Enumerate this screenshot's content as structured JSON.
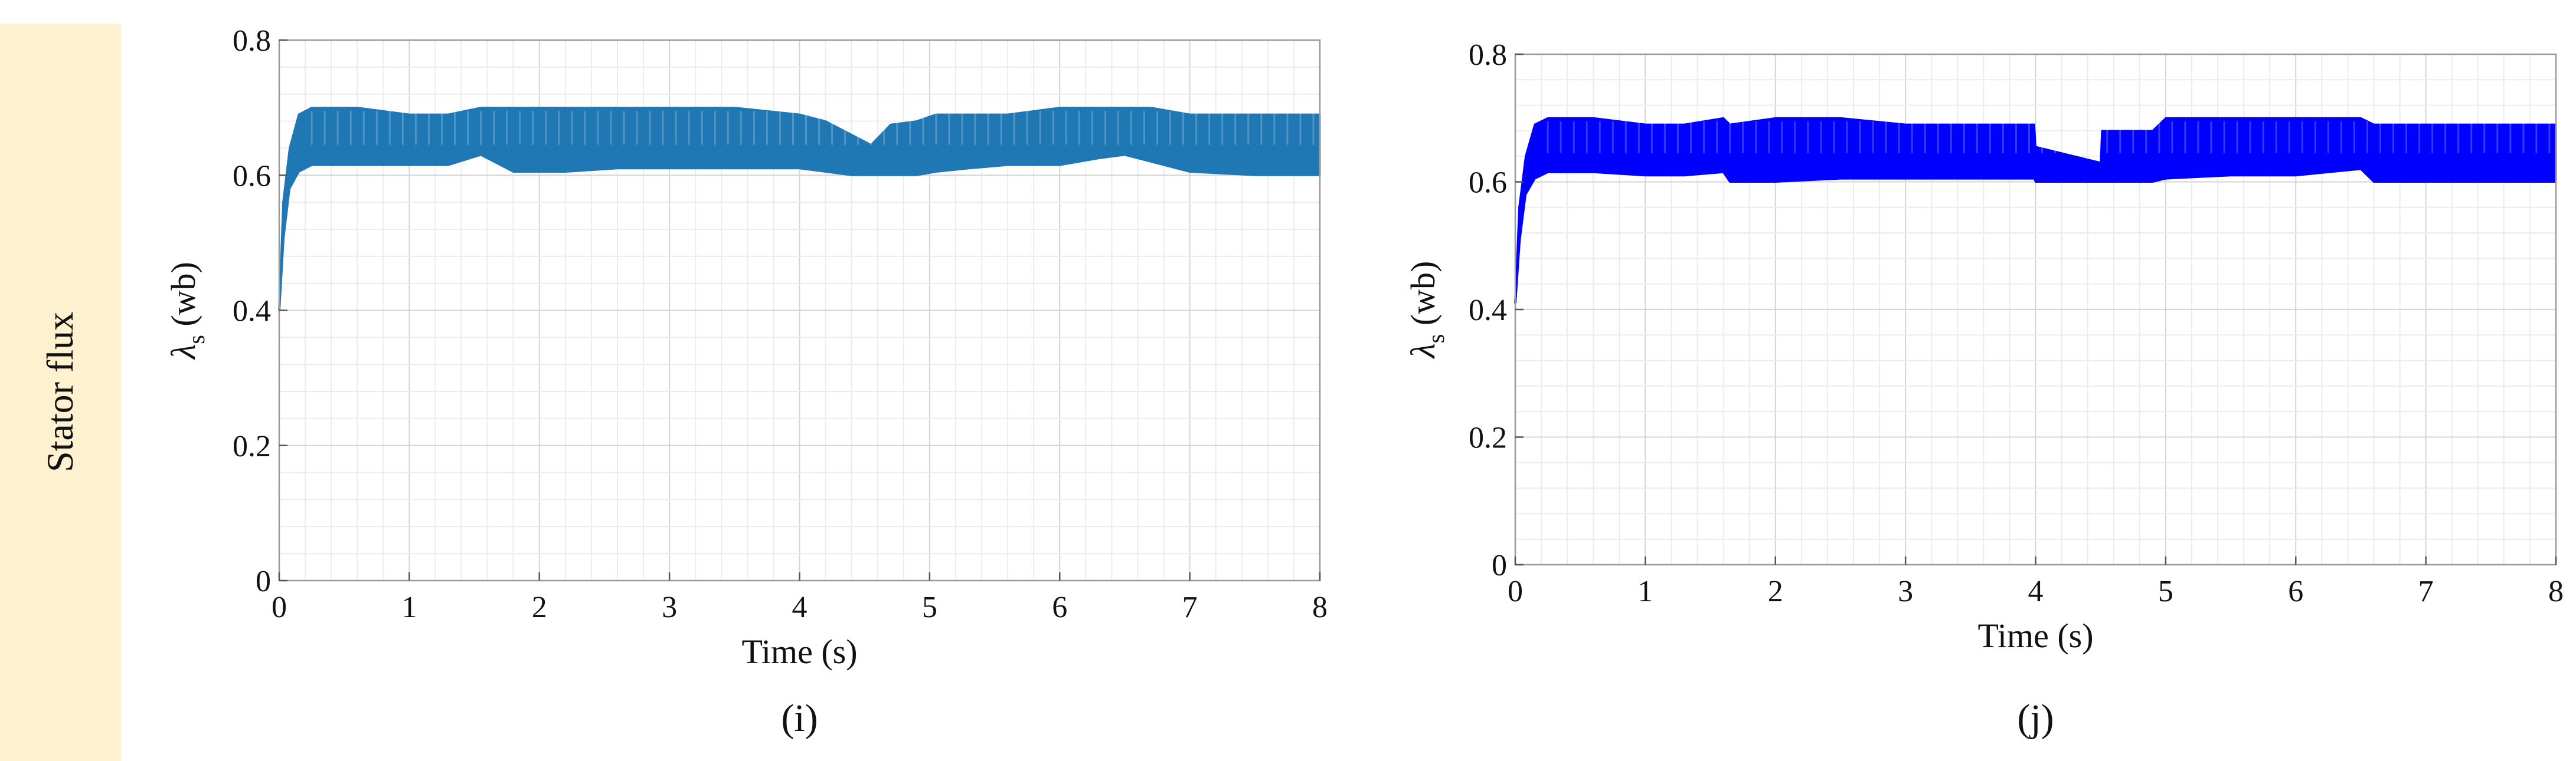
{
  "row_label": "Stator flux",
  "chart_data": [
    {
      "type": "line",
      "panel_label": "(i)",
      "xlabel": "Time (s)",
      "ylabel": "λs (wb)",
      "ylabel_symbol": "λ",
      "ylabel_sub": "s",
      "ylabel_unit": " (wb)",
      "xlim": [
        0,
        8
      ],
      "ylim": [
        0,
        0.8
      ],
      "xticks": [
        0,
        1,
        2,
        3,
        4,
        5,
        6,
        7,
        8
      ],
      "yticks": [
        0,
        0.2,
        0.4,
        0.6,
        0.8
      ],
      "xtick_labels": [
        "0",
        "1",
        "2",
        "3",
        "4",
        "5",
        "6",
        "7",
        "8"
      ],
      "ytick_labels": [
        "0",
        "0.2",
        "0.4",
        "0.6",
        "0.8"
      ],
      "grid": true,
      "color": "#1f77b4",
      "series": [
        {
          "name": "upper envelope",
          "x": [
            0,
            0.03,
            0.08,
            0.15,
            0.25,
            0.4,
            0.6,
            1.0,
            1.3,
            1.55,
            1.8,
            2.2,
            2.6,
            3.0,
            3.5,
            4.0,
            4.2,
            4.4,
            4.55,
            4.7,
            4.9,
            5.05,
            5.3,
            5.6,
            6.0,
            6.3,
            6.5,
            6.7,
            7.0,
            7.5,
            8.0
          ],
          "values": [
            0.4,
            0.56,
            0.64,
            0.69,
            0.7,
            0.7,
            0.7,
            0.69,
            0.69,
            0.7,
            0.7,
            0.7,
            0.7,
            0.7,
            0.7,
            0.69,
            0.68,
            0.66,
            0.645,
            0.675,
            0.68,
            0.69,
            0.69,
            0.69,
            0.7,
            0.7,
            0.7,
            0.7,
            0.69,
            0.69,
            0.69
          ]
        },
        {
          "name": "lower envelope",
          "x": [
            0,
            0.03,
            0.08,
            0.15,
            0.25,
            0.4,
            0.6,
            1.0,
            1.3,
            1.55,
            1.8,
            2.2,
            2.6,
            3.0,
            3.5,
            4.0,
            4.2,
            4.4,
            4.55,
            4.7,
            4.9,
            5.05,
            5.3,
            5.6,
            6.0,
            6.3,
            6.5,
            6.7,
            7.0,
            7.5,
            8.0
          ],
          "values": [
            0.4,
            0.5,
            0.58,
            0.605,
            0.615,
            0.615,
            0.615,
            0.615,
            0.615,
            0.63,
            0.605,
            0.605,
            0.61,
            0.61,
            0.61,
            0.61,
            0.605,
            0.6,
            0.6,
            0.6,
            0.6,
            0.605,
            0.61,
            0.615,
            0.615,
            0.625,
            0.63,
            0.62,
            0.605,
            0.6,
            0.6
          ]
        }
      ]
    },
    {
      "type": "line",
      "panel_label": "(j)",
      "xlabel": "Time (s)",
      "ylabel": "λs (wb)",
      "ylabel_symbol": "λ",
      "ylabel_sub": "s",
      "ylabel_unit": " (wb)",
      "xlim": [
        0,
        8
      ],
      "ylim": [
        0,
        0.8
      ],
      "xticks": [
        0,
        1,
        2,
        3,
        4,
        5,
        6,
        7,
        8
      ],
      "yticks": [
        0,
        0.2,
        0.4,
        0.6,
        0.8
      ],
      "xtick_labels": [
        "0",
        "1",
        "2",
        "3",
        "4",
        "5",
        "6",
        "7",
        "8"
      ],
      "ytick_labels": [
        "0",
        "0.2",
        "0.4",
        "0.6",
        "0.8"
      ],
      "grid": true,
      "color": "#0000ff",
      "series": [
        {
          "name": "upper envelope",
          "x": [
            0,
            0.03,
            0.08,
            0.15,
            0.25,
            0.4,
            0.6,
            1.0,
            1.3,
            1.6,
            1.65,
            2.0,
            2.5,
            3.0,
            3.5,
            3.99,
            4.0,
            4.3,
            4.5,
            4.51,
            4.6,
            4.9,
            5.0,
            5.5,
            6.0,
            6.5,
            6.6,
            7.0,
            8.0
          ],
          "values": [
            0.41,
            0.56,
            0.64,
            0.69,
            0.7,
            0.7,
            0.7,
            0.69,
            0.69,
            0.7,
            0.69,
            0.7,
            0.7,
            0.69,
            0.69,
            0.69,
            0.655,
            0.64,
            0.63,
            0.68,
            0.68,
            0.68,
            0.7,
            0.7,
            0.7,
            0.7,
            0.69,
            0.69,
            0.69
          ]
        },
        {
          "name": "lower envelope",
          "x": [
            0,
            0.03,
            0.08,
            0.15,
            0.25,
            0.4,
            0.6,
            1.0,
            1.3,
            1.6,
            1.65,
            2.0,
            2.5,
            3.0,
            3.5,
            3.99,
            4.0,
            4.3,
            4.5,
            4.51,
            4.6,
            4.9,
            5.0,
            5.5,
            6.0,
            6.5,
            6.6,
            7.0,
            8.0
          ],
          "values": [
            0.41,
            0.5,
            0.58,
            0.605,
            0.615,
            0.615,
            0.615,
            0.61,
            0.61,
            0.615,
            0.6,
            0.6,
            0.605,
            0.605,
            0.605,
            0.605,
            0.6,
            0.6,
            0.6,
            0.6,
            0.6,
            0.6,
            0.605,
            0.61,
            0.61,
            0.62,
            0.6,
            0.6,
            0.6
          ]
        }
      ]
    }
  ]
}
